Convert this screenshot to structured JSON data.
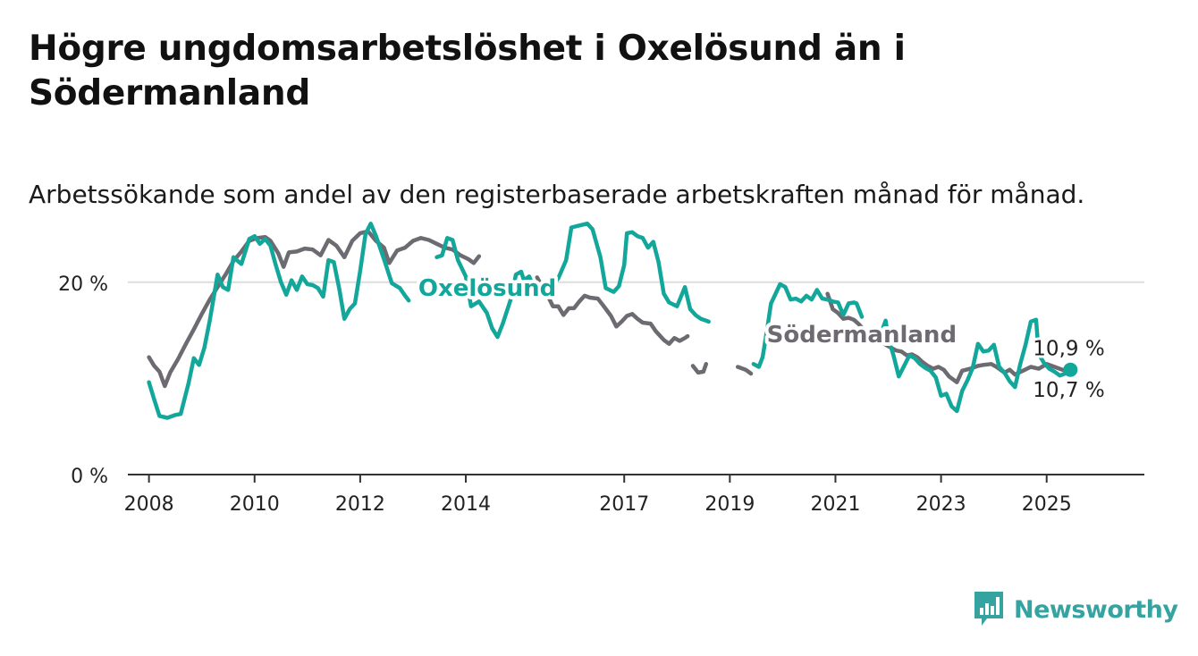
{
  "title": "Högre ungdomsarbetslöshet i Oxelösund än i Södermanland",
  "subtitle": "Arbetssökande som andel av den registerbaserade arbetskraften månad för månad.",
  "brand": "Newsworthy",
  "colors": {
    "oxelosund": "#13a79b",
    "sodermanland": "#6d6a71",
    "axis": "#333333",
    "grid": "#dddddd",
    "brand": "#35a3a0"
  },
  "chart_data": {
    "type": "line",
    "title": "Högre ungdomsarbetslöshet i Oxelösund än i Södermanland",
    "xlabel": "",
    "ylabel": "",
    "xlim": [
      2007.6,
      2026.85
    ],
    "ylim": [
      0,
      25
    ],
    "yticks": [
      {
        "value": 0,
        "label": "0 %"
      },
      {
        "value": 20,
        "label": "20 %"
      }
    ],
    "xticks": [
      {
        "value": 2008,
        "label": "2008"
      },
      {
        "value": 2010,
        "label": "2010"
      },
      {
        "value": 2012,
        "label": "2012"
      },
      {
        "value": 2014,
        "label": "2014"
      },
      {
        "value": 2017,
        "label": "2017"
      },
      {
        "value": 2019,
        "label": "2019"
      },
      {
        "value": 2021,
        "label": "2021"
      },
      {
        "value": 2023,
        "label": "2023"
      },
      {
        "value": 2025,
        "label": "2025"
      }
    ],
    "grid": "horizontal",
    "series": [
      {
        "name": "Oxelösund",
        "color": "#13a79b",
        "last_label": "10,9 %",
        "points": [
          [
            2008.0,
            9.6
          ],
          [
            2008.1,
            7.8
          ],
          [
            2008.2,
            6.1
          ],
          [
            2008.35,
            5.9
          ],
          [
            2008.5,
            6.2
          ],
          [
            2008.6,
            6.3
          ],
          [
            2008.75,
            9.5
          ],
          [
            2008.85,
            12.1
          ],
          [
            2008.95,
            11.4
          ],
          [
            2009.05,
            13.2
          ],
          [
            2009.15,
            16.0
          ],
          [
            2009.3,
            20.8
          ],
          [
            2009.4,
            19.5
          ],
          [
            2009.5,
            19.2
          ],
          [
            2009.6,
            22.6
          ],
          [
            2009.75,
            21.9
          ],
          [
            2009.9,
            24.5
          ],
          [
            2010.0,
            24.8
          ],
          [
            2010.1,
            24.0
          ],
          [
            2010.2,
            24.5
          ],
          [
            2010.3,
            23.8
          ],
          [
            2010.4,
            21.8
          ],
          [
            2010.5,
            20.0
          ],
          [
            2010.6,
            18.7
          ],
          [
            2010.7,
            20.2
          ],
          [
            2010.8,
            19.2
          ],
          [
            2010.9,
            20.6
          ],
          [
            2011.0,
            19.8
          ],
          [
            2011.1,
            19.7
          ],
          [
            2011.2,
            19.4
          ],
          [
            2011.3,
            18.5
          ],
          [
            2011.4,
            22.3
          ],
          [
            2011.5,
            22.1
          ],
          [
            2011.6,
            19.4
          ],
          [
            2011.7,
            16.2
          ],
          [
            2011.8,
            17.2
          ],
          [
            2011.9,
            17.8
          ],
          [
            2012.0,
            21.2
          ],
          [
            2012.1,
            25.0
          ],
          [
            2012.2,
            26.1
          ],
          [
            2012.3,
            24.8
          ],
          [
            2012.45,
            22.4
          ],
          [
            2012.6,
            19.9
          ],
          [
            2012.75,
            19.4
          ],
          [
            2012.85,
            18.6
          ],
          [
            2012.92,
            18.1
          ]
        ],
        "points_b": [
          [
            2013.45,
            22.6
          ],
          [
            2013.55,
            22.8
          ],
          [
            2013.65,
            24.6
          ],
          [
            2013.75,
            24.4
          ],
          [
            2013.85,
            22.3
          ],
          [
            2014.0,
            20.6
          ],
          [
            2014.1,
            17.5
          ],
          [
            2014.25,
            18.0
          ],
          [
            2014.4,
            16.8
          ],
          [
            2014.5,
            15.2
          ],
          [
            2014.6,
            14.3
          ],
          [
            2014.7,
            15.7
          ],
          [
            2014.85,
            18.2
          ],
          [
            2014.95,
            20.8
          ],
          [
            2015.05,
            21.1
          ],
          [
            2015.1,
            20.2
          ],
          [
            2015.2,
            20.6
          ],
          [
            2015.3,
            19.3
          ],
          [
            2015.45,
            18.8
          ],
          [
            2015.6,
            19.4
          ],
          [
            2015.75,
            20.4
          ],
          [
            2015.9,
            22.3
          ],
          [
            2016.0,
            25.7
          ],
          [
            2016.15,
            25.9
          ],
          [
            2016.3,
            26.1
          ],
          [
            2016.4,
            25.5
          ],
          [
            2016.55,
            22.6
          ],
          [
            2016.65,
            19.4
          ],
          [
            2016.8,
            19.0
          ],
          [
            2016.9,
            19.6
          ],
          [
            2017.0,
            21.8
          ],
          [
            2017.05,
            25.1
          ],
          [
            2017.15,
            25.2
          ],
          [
            2017.25,
            24.8
          ],
          [
            2017.35,
            24.6
          ],
          [
            2017.45,
            23.6
          ],
          [
            2017.55,
            24.2
          ],
          [
            2017.65,
            22.1
          ],
          [
            2017.75,
            18.8
          ],
          [
            2017.85,
            17.9
          ],
          [
            2018.0,
            17.5
          ],
          [
            2018.15,
            19.5
          ],
          [
            2018.25,
            17.2
          ],
          [
            2018.35,
            16.6
          ],
          [
            2018.45,
            16.2
          ],
          [
            2018.55,
            16.0
          ],
          [
            2018.6,
            15.9
          ]
        ],
        "points_c": [
          [
            2019.45,
            11.5
          ],
          [
            2019.55,
            11.2
          ],
          [
            2019.62,
            12.2
          ],
          [
            2019.7,
            14.9
          ],
          [
            2019.78,
            17.8
          ],
          [
            2019.85,
            18.6
          ],
          [
            2019.95,
            19.8
          ],
          [
            2020.05,
            19.5
          ],
          [
            2020.15,
            18.2
          ],
          [
            2020.25,
            18.3
          ],
          [
            2020.35,
            18.0
          ],
          [
            2020.45,
            18.6
          ],
          [
            2020.55,
            18.2
          ],
          [
            2020.65,
            19.2
          ],
          [
            2020.75,
            18.3
          ],
          [
            2020.85,
            18.2
          ],
          [
            2020.95,
            18.0
          ],
          [
            2021.05,
            17.9
          ],
          [
            2021.15,
            16.6
          ],
          [
            2021.25,
            17.8
          ],
          [
            2021.35,
            17.9
          ],
          [
            2021.4,
            17.8
          ],
          [
            2021.5,
            16.4
          ]
        ],
        "points_d": [
          [
            2021.62,
            14.6
          ],
          [
            2021.75,
            14.7
          ],
          [
            2021.85,
            14.5
          ],
          [
            2021.95,
            16.0
          ],
          [
            2022.0,
            14.2
          ],
          [
            2022.1,
            12.4
          ],
          [
            2022.2,
            10.2
          ],
          [
            2022.3,
            11.3
          ],
          [
            2022.4,
            12.4
          ],
          [
            2022.5,
            12.1
          ],
          [
            2022.6,
            11.5
          ],
          [
            2022.7,
            11.1
          ],
          [
            2022.8,
            10.8
          ],
          [
            2022.9,
            10.1
          ],
          [
            2023.0,
            8.2
          ],
          [
            2023.1,
            8.4
          ],
          [
            2023.2,
            7.1
          ],
          [
            2023.3,
            6.6
          ],
          [
            2023.4,
            8.7
          ],
          [
            2023.5,
            9.8
          ],
          [
            2023.6,
            11.1
          ],
          [
            2023.7,
            13.6
          ],
          [
            2023.8,
            12.8
          ],
          [
            2023.9,
            12.9
          ],
          [
            2024.0,
            13.5
          ],
          [
            2024.1,
            11.2
          ],
          [
            2024.2,
            10.6
          ],
          [
            2024.3,
            9.7
          ],
          [
            2024.4,
            9.1
          ],
          [
            2024.5,
            11.5
          ],
          [
            2024.6,
            13.5
          ],
          [
            2024.7,
            15.9
          ],
          [
            2024.8,
            16.1
          ],
          [
            2024.85,
            12.5
          ],
          [
            2024.95,
            11.6
          ],
          [
            2025.05,
            11.0
          ],
          [
            2025.15,
            10.7
          ],
          [
            2025.25,
            10.3
          ],
          [
            2025.35,
            10.5
          ],
          [
            2025.45,
            10.9
          ]
        ]
      },
      {
        "name": "Södermanland",
        "color": "#6d6a71",
        "last_label": "10,7 %",
        "points": [
          [
            2008.0,
            12.2
          ],
          [
            2008.1,
            11.3
          ],
          [
            2008.2,
            10.7
          ],
          [
            2008.3,
            9.2
          ],
          [
            2008.4,
            10.6
          ],
          [
            2008.55,
            12.0
          ],
          [
            2008.7,
            13.6
          ],
          [
            2008.85,
            15.1
          ],
          [
            2009.0,
            16.7
          ],
          [
            2009.15,
            18.2
          ],
          [
            2009.3,
            19.5
          ],
          [
            2009.45,
            20.8
          ],
          [
            2009.6,
            22.2
          ],
          [
            2009.75,
            23.2
          ],
          [
            2009.9,
            24.3
          ],
          [
            2010.05,
            24.6
          ],
          [
            2010.2,
            24.7
          ],
          [
            2010.3,
            24.3
          ],
          [
            2010.45,
            23.0
          ],
          [
            2010.55,
            21.6
          ],
          [
            2010.65,
            23.1
          ],
          [
            2010.8,
            23.2
          ],
          [
            2010.95,
            23.5
          ],
          [
            2011.1,
            23.4
          ],
          [
            2011.25,
            22.8
          ],
          [
            2011.4,
            24.4
          ],
          [
            2011.55,
            23.8
          ],
          [
            2011.7,
            22.6
          ],
          [
            2011.85,
            24.3
          ],
          [
            2012.0,
            25.1
          ],
          [
            2012.15,
            25.3
          ],
          [
            2012.3,
            24.3
          ],
          [
            2012.45,
            23.6
          ],
          [
            2012.55,
            22.0
          ],
          [
            2012.7,
            23.3
          ],
          [
            2012.85,
            23.6
          ],
          [
            2013.0,
            24.3
          ],
          [
            2013.15,
            24.6
          ],
          [
            2013.3,
            24.4
          ],
          [
            2013.45,
            24.0
          ],
          [
            2013.6,
            23.6
          ],
          [
            2013.75,
            23.4
          ],
          [
            2013.9,
            22.8
          ],
          [
            2014.05,
            22.4
          ],
          [
            2014.15,
            22.0
          ],
          [
            2014.25,
            22.7
          ]
        ],
        "points_b": [
          [
            2015.35,
            20.5
          ],
          [
            2015.45,
            19.5
          ],
          [
            2015.55,
            18.6
          ],
          [
            2015.65,
            17.5
          ],
          [
            2015.75,
            17.5
          ],
          [
            2015.85,
            16.6
          ],
          [
            2015.95,
            17.3
          ],
          [
            2016.05,
            17.3
          ],
          [
            2016.15,
            18.0
          ],
          [
            2016.25,
            18.6
          ],
          [
            2016.35,
            18.4
          ],
          [
            2016.5,
            18.3
          ],
          [
            2016.6,
            17.6
          ],
          [
            2016.75,
            16.5
          ],
          [
            2016.85,
            15.4
          ],
          [
            2016.95,
            15.9
          ],
          [
            2017.05,
            16.5
          ],
          [
            2017.15,
            16.7
          ],
          [
            2017.25,
            16.2
          ],
          [
            2017.35,
            15.8
          ],
          [
            2017.5,
            15.7
          ],
          [
            2017.6,
            14.9
          ],
          [
            2017.75,
            14.0
          ],
          [
            2017.85,
            13.6
          ],
          [
            2017.95,
            14.2
          ],
          [
            2018.05,
            13.9
          ],
          [
            2018.15,
            14.2
          ],
          [
            2018.2,
            14.4
          ]
        ],
        "points_c": [
          [
            2018.3,
            11.3
          ],
          [
            2018.4,
            10.6
          ],
          [
            2018.5,
            10.7
          ],
          [
            2018.55,
            11.5
          ]
        ],
        "points_d": [
          [
            2019.15,
            11.2
          ],
          [
            2019.3,
            10.9
          ],
          [
            2019.4,
            10.5
          ]
        ],
        "points_e": [
          [
            2020.85,
            18.8
          ],
          [
            2020.95,
            17.2
          ],
          [
            2021.05,
            16.8
          ],
          [
            2021.15,
            16.2
          ],
          [
            2021.25,
            16.3
          ],
          [
            2021.35,
            16.1
          ],
          [
            2021.45,
            15.6
          ],
          [
            2021.55,
            15.0
          ],
          [
            2021.65,
            14.6
          ],
          [
            2021.75,
            14.3
          ],
          [
            2021.85,
            13.8
          ],
          [
            2021.95,
            13.5
          ],
          [
            2022.05,
            13.2
          ],
          [
            2022.15,
            12.9
          ],
          [
            2022.25,
            12.8
          ],
          [
            2022.35,
            12.4
          ],
          [
            2022.45,
            12.5
          ],
          [
            2022.55,
            12.2
          ],
          [
            2022.65,
            11.7
          ],
          [
            2022.75,
            11.3
          ],
          [
            2022.85,
            11.0
          ],
          [
            2022.95,
            11.2
          ],
          [
            2023.05,
            10.9
          ],
          [
            2023.15,
            10.2
          ],
          [
            2023.3,
            9.6
          ],
          [
            2023.4,
            10.8
          ],
          [
            2023.55,
            11.0
          ],
          [
            2023.7,
            11.3
          ],
          [
            2023.8,
            11.4
          ],
          [
            2023.95,
            11.5
          ],
          [
            2024.05,
            11.2
          ],
          [
            2024.2,
            10.6
          ],
          [
            2024.3,
            10.9
          ],
          [
            2024.4,
            10.4
          ],
          [
            2024.55,
            10.8
          ],
          [
            2024.7,
            11.2
          ],
          [
            2024.85,
            11.0
          ],
          [
            2025.0,
            11.5
          ],
          [
            2025.15,
            11.2
          ],
          [
            2025.3,
            10.9
          ],
          [
            2025.45,
            10.7
          ]
        ]
      }
    ],
    "series_labels": [
      {
        "series": "Oxelösund",
        "text": "Oxelösund",
        "x": 2013.1,
        "y": 19.5
      },
      {
        "series": "Södermanland",
        "text": "Södermanland",
        "x": 2019.7,
        "y": 14.7
      }
    ],
    "end_values": [
      {
        "series": "Oxelösund",
        "text": "10,9 %",
        "x": 2025.45,
        "y": 10.9
      },
      {
        "series": "Södermanland",
        "text": "10,7 %",
        "x": 2025.45,
        "y": 10.7
      }
    ]
  }
}
